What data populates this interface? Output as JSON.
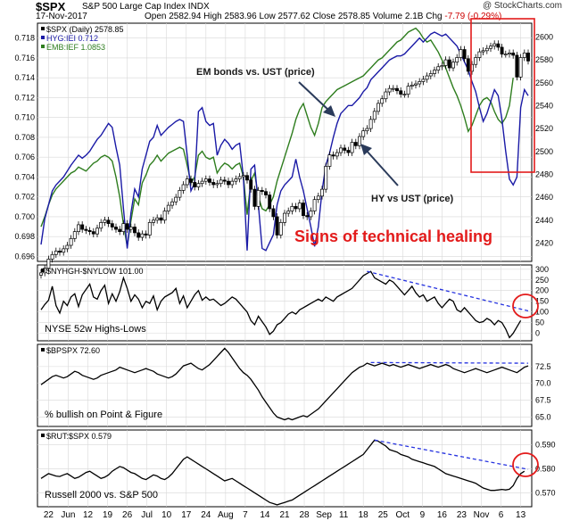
{
  "header": {
    "symbol": "$SPX",
    "description": "S&P 500 Large Cap Index  INDX",
    "site": "@ StockCharts.com",
    "date": "17-Nov-2017",
    "quote": "Open 2582.94  High 2583.96  Low 2577.62  Close 2578.85  Volume 2.1B  Chg",
    "change": "-7.79 (-0.29%)"
  },
  "colors": {
    "price": "#000000",
    "hyg": "#1a1aa6",
    "emb": "#2e7d1e",
    "annotation": "#e31b1b",
    "arrow": "#2a3a5a",
    "trend": "#2633e0",
    "grid": "#d8d8d8"
  },
  "annotations": {
    "em_label": "EM bonds vs. UST (price)",
    "hy_label": "HY vs UST (price)",
    "healing": "Signs of technical healing"
  },
  "chart_data": [
    {
      "type": "line",
      "panel": "main",
      "legend": [
        "$SPX (Daily) 2578.85",
        "HYG:IEI 0.712",
        "EMB:IEF 1.0853"
      ],
      "x_tick_labels": [
        "22",
        "Jun",
        "12",
        "19",
        "26",
        "Jul",
        "10",
        "17",
        "24",
        "Aug",
        "7",
        "14",
        "21",
        "28",
        "Sep",
        "11",
        "18",
        "25",
        "Oct",
        "9",
        "16",
        "23",
        "Nov",
        "6",
        "13"
      ],
      "left_axis": {
        "ticks": [
          0.696,
          0.698,
          0.7,
          0.702,
          0.704,
          0.706,
          0.708,
          0.71,
          0.712,
          0.714,
          0.716,
          0.718
        ],
        "ylim": [
          0.6955,
          0.7195
        ]
      },
      "right_axis": {
        "ticks": [
          2420,
          2440,
          2460,
          2480,
          2500,
          2520,
          2540,
          2560,
          2580,
          2600
        ],
        "ylim": [
          2404,
          2612
        ]
      },
      "series": [
        {
          "name": "$SPX",
          "style": "candlestick",
          "axis": "right",
          "values": [
            2394,
            2398,
            2406,
            2410,
            2413,
            2412,
            2415,
            2418,
            2424,
            2430,
            2436,
            2432,
            2431,
            2430,
            2428,
            2433,
            2438,
            2440,
            2437,
            2434,
            2432,
            2430,
            2437,
            2432,
            2434,
            2429,
            2425,
            2428,
            2427,
            2438,
            2440,
            2442,
            2440,
            2448,
            2453,
            2456,
            2460,
            2466,
            2471,
            2476,
            2473,
            2469,
            2472,
            2474,
            2476,
            2473,
            2471,
            2472,
            2475,
            2474,
            2471,
            2474,
            2476,
            2478,
            2479,
            2475,
            2467,
            2452,
            2466,
            2465,
            2462,
            2450,
            2443,
            2427,
            2438,
            2446,
            2448,
            2452,
            2450,
            2455,
            2444,
            2443,
            2448,
            2458,
            2461,
            2467,
            2487,
            2497,
            2496,
            2499,
            2503,
            2501,
            2499,
            2508,
            2505,
            2513,
            2518,
            2520,
            2528,
            2535,
            2542,
            2546,
            2552,
            2555,
            2555,
            2553,
            2550,
            2550,
            2557,
            2558,
            2559,
            2561,
            2563,
            2566,
            2568,
            2571,
            2574,
            2575,
            2580,
            2573,
            2578,
            2582,
            2589,
            2581,
            2570,
            2576,
            2582,
            2587,
            2588,
            2590,
            2592,
            2594,
            2591,
            2585,
            2585,
            2586,
            2584,
            2565,
            2582,
            2586,
            2579
          ]
        },
        {
          "name": "HYG:IEI",
          "axis": "left",
          "values": [
            0.6972,
            0.6998,
            0.7012,
            0.7026,
            0.7032,
            0.7036,
            0.704,
            0.7046,
            0.7052,
            0.7057,
            0.7062,
            0.7059,
            0.7062,
            0.7066,
            0.7072,
            0.7078,
            0.7082,
            0.7088,
            0.7094,
            0.709,
            0.707,
            0.7052,
            0.7008,
            0.6968,
            0.7004,
            0.7028,
            0.702,
            0.7048,
            0.7062,
            0.7076,
            0.708,
            0.7092,
            0.7082,
            0.7086,
            0.709,
            0.7093,
            0.7096,
            0.7098,
            0.7096,
            0.7062,
            0.7026,
            0.7034,
            0.7106,
            0.711,
            0.7096,
            0.7092,
            0.7094,
            0.7062,
            0.7072,
            0.7078,
            0.7074,
            0.7068,
            0.7072,
            0.7074,
            0.704,
            0.6966,
            0.7048,
            0.7052,
            0.7012,
            0.6968,
            0.6966,
            0.6974,
            0.6982,
            0.7012,
            0.7026,
            0.7032,
            0.7036,
            0.704,
            0.7058,
            0.704,
            0.7026,
            0.7008,
            0.699,
            0.697,
            0.699,
            0.7026,
            0.7052,
            0.7064,
            0.708,
            0.7094,
            0.7104,
            0.7108,
            0.7112,
            0.7112,
            0.7116,
            0.712,
            0.7126,
            0.713,
            0.7138,
            0.7142,
            0.7146,
            0.715,
            0.7154,
            0.7158,
            0.716,
            0.7162,
            0.7162,
            0.7164,
            0.7168,
            0.7172,
            0.7176,
            0.718,
            0.7176,
            0.718,
            0.7184,
            0.7186,
            0.7184,
            0.7182,
            0.7184,
            0.718,
            0.7176,
            0.7172,
            0.7164,
            0.7156,
            0.7148,
            0.7136,
            0.7126,
            0.711,
            0.7096,
            0.7104,
            0.7116,
            0.7128,
            0.7122,
            0.7098,
            0.7066,
            0.7038,
            0.7032,
            0.704,
            0.711,
            0.7128,
            0.7122
          ]
        },
        {
          "name": "EMB:IEF",
          "axis": "left",
          "values": [
            0.699,
            0.7,
            0.7012,
            0.7022,
            0.7028,
            0.7032,
            0.7036,
            0.704,
            0.7044,
            0.7046,
            0.705,
            0.7048,
            0.7046,
            0.705,
            0.7054,
            0.7056,
            0.706,
            0.7062,
            0.706,
            0.7056,
            0.704,
            0.702,
            0.6992,
            0.697,
            0.6996,
            0.7018,
            0.7012,
            0.7034,
            0.7042,
            0.7052,
            0.7056,
            0.7062,
            0.7056,
            0.706,
            0.7064,
            0.7066,
            0.7068,
            0.707,
            0.7068,
            0.7052,
            0.7034,
            0.704,
            0.7062,
            0.7066,
            0.706,
            0.7058,
            0.706,
            0.7044,
            0.705,
            0.7054,
            0.7052,
            0.7048,
            0.7052,
            0.7054,
            0.704,
            0.7002,
            0.7036,
            0.7044,
            0.702,
            0.7008,
            0.7006,
            0.7012,
            0.702,
            0.7036,
            0.7048,
            0.706,
            0.7072,
            0.7084,
            0.7098,
            0.7108,
            0.7114,
            0.7102,
            0.709,
            0.7082,
            0.7094,
            0.711,
            0.7116,
            0.712,
            0.7124,
            0.7128,
            0.713,
            0.7132,
            0.7134,
            0.7136,
            0.7138,
            0.714,
            0.7142,
            0.7146,
            0.715,
            0.7154,
            0.7158,
            0.716,
            0.7164,
            0.7168,
            0.7172,
            0.7176,
            0.7178,
            0.7182,
            0.7186,
            0.7188,
            0.719,
            0.7186,
            0.718,
            0.7176,
            0.7178,
            0.7172,
            0.7166,
            0.7158,
            0.715,
            0.714,
            0.713,
            0.7122,
            0.7112,
            0.71,
            0.7086,
            0.7092,
            0.7102,
            0.7112,
            0.7118,
            0.712,
            0.7116,
            0.7106,
            0.7098,
            0.7094,
            0.71,
            0.7112,
            0.714
          ]
        }
      ]
    },
    {
      "type": "line",
      "panel": "nyse-highs-lows",
      "legend": "$NYHGH-$NYLOW 101.00",
      "label": "NYSE 52w Highs-Lows",
      "axis": {
        "ticks": [
          0,
          50,
          100,
          150,
          200,
          250,
          300
        ],
        "ylim": [
          -35,
          320
        ]
      },
      "values": [
        110,
        135,
        155,
        220,
        130,
        95,
        150,
        130,
        170,
        185,
        125,
        180,
        205,
        230,
        170,
        160,
        200,
        225,
        140,
        185,
        150,
        195,
        260,
        210,
        150,
        180,
        160,
        120,
        150,
        140,
        175,
        110,
        150,
        170,
        180,
        190,
        210,
        140,
        175,
        120,
        150,
        180,
        200,
        155,
        170,
        155,
        160,
        145,
        130,
        140,
        155,
        170,
        160,
        140,
        120,
        100,
        60,
        40,
        80,
        55,
        30,
        -5,
        10,
        40,
        50,
        70,
        90,
        100,
        90,
        110,
        120,
        130,
        140,
        150,
        160,
        150,
        170,
        160,
        150,
        170,
        180,
        190,
        200,
        210,
        230,
        250,
        270,
        280,
        290,
        260,
        250,
        240,
        230,
        250,
        240,
        220,
        200,
        180,
        200,
        220,
        190,
        170,
        180,
        150,
        160,
        170,
        140,
        120,
        140,
        160,
        150,
        110,
        100,
        120,
        100,
        80,
        60,
        50,
        55,
        70,
        60,
        40,
        60,
        50,
        20,
        -20,
        0,
        30,
        60
      ]
    },
    {
      "type": "line",
      "panel": "bullish-percent",
      "legend": "$BPSPX 72.60",
      "label": "% bullish on Point & Figure",
      "axis": {
        "ticks": [
          65.0,
          67.5,
          70.0,
          72.5
        ],
        "ylim": [
          63.6,
          75.8
        ]
      },
      "values": [
        69.8,
        70.2,
        70.6,
        71.0,
        71.2,
        71.0,
        70.8,
        71.0,
        71.4,
        71.8,
        71.6,
        71.2,
        71.0,
        70.8,
        70.6,
        70.8,
        71.2,
        71.4,
        71.6,
        71.8,
        72.0,
        72.4,
        72.2,
        72.0,
        71.8,
        71.6,
        71.8,
        72.0,
        72.2,
        72.0,
        71.8,
        71.4,
        71.2,
        71.0,
        70.8,
        71.0,
        71.4,
        72.0,
        72.6,
        72.8,
        73.0,
        72.6,
        72.2,
        72.0,
        72.4,
        72.8,
        73.4,
        74.0,
        74.6,
        75.2,
        74.6,
        73.8,
        73.0,
        72.2,
        71.6,
        71.2,
        70.6,
        69.8,
        69.0,
        68.0,
        67.2,
        66.4,
        65.6,
        65.0,
        64.8,
        64.6,
        64.8,
        64.6,
        64.8,
        65.0,
        65.2,
        65.0,
        65.4,
        65.8,
        66.2,
        66.8,
        67.4,
        68.0,
        68.6,
        69.2,
        69.8,
        70.4,
        71.0,
        71.6,
        72.0,
        72.4,
        72.6,
        73.0,
        72.8,
        72.6,
        72.8,
        73.0,
        72.8,
        72.6,
        72.8,
        72.6,
        72.4,
        72.6,
        72.8,
        72.6,
        72.4,
        72.2,
        72.4,
        72.6,
        72.8,
        72.6,
        72.4,
        72.6,
        72.8,
        72.6,
        72.2,
        72.0,
        71.8,
        71.6,
        71.8,
        72.0,
        72.2,
        72.0,
        71.8,
        71.6,
        71.8,
        72.0,
        72.2,
        72.4,
        72.2,
        72.0,
        71.8,
        71.6,
        72.0,
        72.4,
        72.6
      ]
    },
    {
      "type": "line",
      "panel": "rut-spx",
      "legend": "$RUT:$SPX 0.579",
      "label": "Russell 2000 vs. S&P 500",
      "axis": {
        "ticks": [
          0.57,
          0.58,
          0.59
        ],
        "ylim": [
          0.5642,
          0.5962
        ]
      },
      "values": [
        0.576,
        0.577,
        0.578,
        0.5775,
        0.577,
        0.5768,
        0.5775,
        0.578,
        0.577,
        0.576,
        0.5765,
        0.5775,
        0.5785,
        0.579,
        0.578,
        0.577,
        0.576,
        0.5765,
        0.5775,
        0.579,
        0.58,
        0.581,
        0.5805,
        0.5795,
        0.5785,
        0.578,
        0.577,
        0.576,
        0.5755,
        0.5765,
        0.5775,
        0.577,
        0.576,
        0.5755,
        0.5765,
        0.578,
        0.58,
        0.582,
        0.584,
        0.585,
        0.584,
        0.583,
        0.582,
        0.581,
        0.58,
        0.579,
        0.578,
        0.577,
        0.576,
        0.575,
        0.5755,
        0.576,
        0.575,
        0.574,
        0.573,
        0.572,
        0.571,
        0.57,
        0.569,
        0.568,
        0.567,
        0.566,
        0.5655,
        0.565,
        0.5655,
        0.566,
        0.5665,
        0.567,
        0.568,
        0.569,
        0.57,
        0.571,
        0.572,
        0.573,
        0.574,
        0.575,
        0.576,
        0.577,
        0.578,
        0.579,
        0.58,
        0.581,
        0.582,
        0.583,
        0.584,
        0.585,
        0.586,
        0.588,
        0.59,
        0.592,
        0.5915,
        0.5905,
        0.5895,
        0.588,
        0.5875,
        0.587,
        0.586,
        0.5855,
        0.585,
        0.584,
        0.5835,
        0.583,
        0.5825,
        0.582,
        0.5815,
        0.581,
        0.58,
        0.579,
        0.578,
        0.5775,
        0.577,
        0.5765,
        0.576,
        0.5755,
        0.575,
        0.5745,
        0.574,
        0.573,
        0.572,
        0.5715,
        0.571,
        0.571,
        0.5712,
        0.5714,
        0.5712,
        0.5715,
        0.573,
        0.576,
        0.578,
        0.579
      ]
    }
  ]
}
